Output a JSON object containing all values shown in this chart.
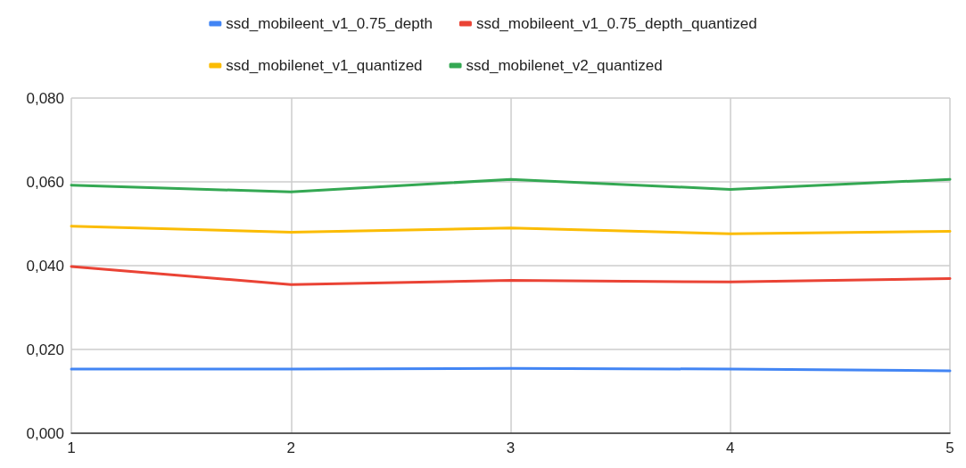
{
  "chart_data": {
    "type": "line",
    "x": [
      1,
      2,
      3,
      4,
      5
    ],
    "series": [
      {
        "name": "ssd_mobileent_v1_0.75_depth",
        "color": "#4285f4",
        "values": [
          0.0153,
          0.0153,
          0.0155,
          0.0153,
          0.0149
        ]
      },
      {
        "name": "ssd_mobileent_v1_0.75_depth_quantized",
        "color": "#ea4335",
        "values": [
          0.0398,
          0.0355,
          0.0365,
          0.0361,
          0.0369
        ]
      },
      {
        "name": "ssd_mobilenet_v1_quantized",
        "color": "#fbbc04",
        "values": [
          0.0494,
          0.048,
          0.049,
          0.0476,
          0.0482
        ]
      },
      {
        "name": "ssd_mobilenet_v2_quantized",
        "color": "#34a853",
        "values": [
          0.0592,
          0.0576,
          0.0606,
          0.0582,
          0.0606
        ]
      }
    ],
    "xlim": [
      1,
      5
    ],
    "xticks": [
      1,
      2,
      3,
      4,
      5
    ],
    "ylim": [
      0,
      0.08
    ],
    "yticks": [
      {
        "value": 0,
        "label": "0,000"
      },
      {
        "value": 0.02,
        "label": "0,020"
      },
      {
        "value": 0.04,
        "label": "0,040"
      },
      {
        "value": 0.06,
        "label": "0,060"
      },
      {
        "value": 0.08,
        "label": "0,080"
      }
    ],
    "grid": true,
    "legend": "top",
    "marker": "none",
    "line_style": "solid"
  }
}
